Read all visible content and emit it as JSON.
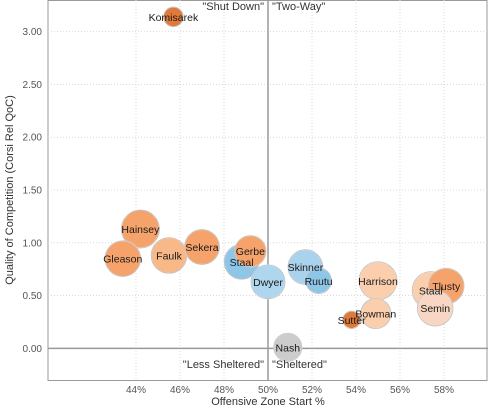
{
  "chart_data": {
    "type": "scatter",
    "xlabel": "Offensive Zone Start %",
    "ylabel": "Quality of Competition (Corsi Rel QoC)",
    "xlim": [
      40.0,
      60.0
    ],
    "ylim": [
      -0.3,
      3.3
    ],
    "x_ticks": [
      44,
      46,
      48,
      50,
      52,
      54,
      56,
      58
    ],
    "x_tick_labels": [
      "44%",
      "46%",
      "48%",
      "50%",
      "52%",
      "54%",
      "56%",
      "58%"
    ],
    "y_ticks": [
      0.0,
      0.5,
      1.0,
      1.5,
      2.0,
      2.5,
      3.0
    ],
    "y_tick_labels": [
      "0.00",
      "0.50",
      "1.00",
      "1.50",
      "2.00",
      "2.50",
      "3.00"
    ],
    "grid": true,
    "divider_x": 50,
    "divider_y": 0,
    "quadrant_labels": {
      "top_left": "\"Shut Down\"",
      "top_right": "\"Two-Way\"",
      "bottom_left": "\"Less Sheltered\"",
      "bottom_right": "\"Sheltered\""
    },
    "points": [
      {
        "label": "Komisarek",
        "x": 45.7,
        "y": 3.14,
        "size": 0.15,
        "color": "#e07a3a"
      },
      {
        "label": "Hainsey",
        "x": 44.2,
        "y": 1.13,
        "size": 1.0,
        "color": "#f6a36b"
      },
      {
        "label": "Gleason",
        "x": 43.4,
        "y": 0.85,
        "size": 0.85,
        "color": "#f6a36b"
      },
      {
        "label": "Faulk",
        "x": 45.5,
        "y": 0.88,
        "size": 0.85,
        "color": "#f8b888"
      },
      {
        "label": "Sekera",
        "x": 47.0,
        "y": 0.96,
        "size": 0.8,
        "color": "#f6a36b"
      },
      {
        "label": "Gerbe",
        "x": 49.2,
        "y": 0.92,
        "size": 0.6,
        "color": "#f6a36b"
      },
      {
        "label": "Staal",
        "x": 48.8,
        "y": 0.82,
        "size": 0.8,
        "color": "#8ec6e8"
      },
      {
        "label": "Dwyer",
        "x": 50.0,
        "y": 0.63,
        "size": 0.75,
        "color": "#aed6ee"
      },
      {
        "label": "Skinner",
        "x": 51.7,
        "y": 0.77,
        "size": 0.8,
        "color": "#a9d2ec"
      },
      {
        "label": "Ruutu",
        "x": 52.3,
        "y": 0.64,
        "size": 0.35,
        "color": "#8ec6e8"
      },
      {
        "label": "Harrison",
        "x": 55.0,
        "y": 0.64,
        "size": 1.0,
        "color": "#fbcfae"
      },
      {
        "label": "Tlusty",
        "x": 58.1,
        "y": 0.59,
        "size": 0.85,
        "color": "#f6a36b"
      },
      {
        "label": "Staal",
        "x": 57.4,
        "y": 0.55,
        "size": 0.95,
        "color": "#fbcfae"
      },
      {
        "label": "Semin",
        "x": 57.6,
        "y": 0.38,
        "size": 0.85,
        "color": "#f7d7c3"
      },
      {
        "label": "Bowman",
        "x": 54.9,
        "y": 0.33,
        "size": 0.55,
        "color": "#fbcfae"
      },
      {
        "label": "Sutter",
        "x": 53.8,
        "y": 0.27,
        "size": 0.1,
        "color": "#e07a3a"
      },
      {
        "label": "Nash",
        "x": 50.9,
        "y": 0.01,
        "size": 0.45,
        "color": "#cccccc"
      }
    ]
  }
}
